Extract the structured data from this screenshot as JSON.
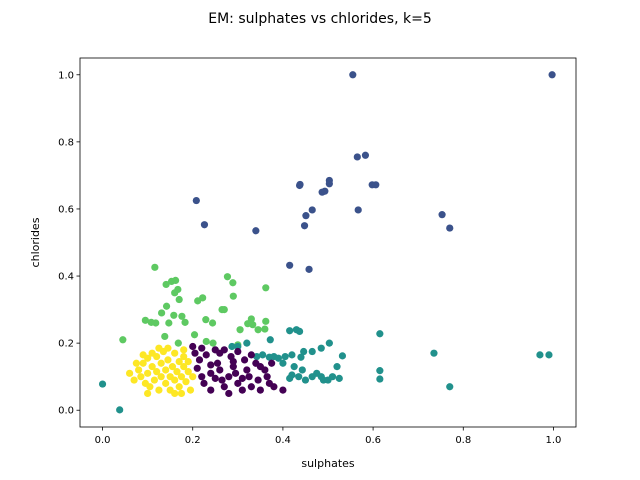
{
  "chart_data": {
    "type": "scatter",
    "title": "EM: sulphates vs chlorides, k=5",
    "xlabel": "sulphates",
    "ylabel": "chlorides",
    "xlim": [
      -0.05,
      1.05
    ],
    "ylim": [
      -0.05,
      1.05
    ],
    "xticks": [
      "0.0",
      "0.2",
      "0.4",
      "0.6",
      "0.8",
      "1.0"
    ],
    "yticks": [
      "0.0",
      "0.2",
      "0.4",
      "0.6",
      "0.8",
      "1.0"
    ],
    "grid": false,
    "legend": "none",
    "series": [
      {
        "color": "#3b528b",
        "points": [
          [
            0.555,
            1.0
          ],
          [
            0.997,
            1.0
          ],
          [
            0.565,
            0.755
          ],
          [
            0.583,
            0.76
          ],
          [
            0.208,
            0.625
          ],
          [
            0.226,
            0.553
          ],
          [
            0.34,
            0.535
          ],
          [
            0.437,
            0.67
          ],
          [
            0.438,
            0.673
          ],
          [
            0.487,
            0.65
          ],
          [
            0.493,
            0.653
          ],
          [
            0.503,
            0.685
          ],
          [
            0.503,
            0.675
          ],
          [
            0.598,
            0.672
          ],
          [
            0.606,
            0.672
          ],
          [
            0.465,
            0.597
          ],
          [
            0.451,
            0.58
          ],
          [
            0.448,
            0.55
          ],
          [
            0.567,
            0.597
          ],
          [
            0.753,
            0.583
          ],
          [
            0.77,
            0.543
          ],
          [
            0.415,
            0.432
          ],
          [
            0.458,
            0.42
          ]
        ]
      },
      {
        "color": "#5ec962",
        "points": [
          [
            0.116,
            0.426
          ],
          [
            0.162,
            0.387
          ],
          [
            0.153,
            0.384
          ],
          [
            0.141,
            0.375
          ],
          [
            0.167,
            0.36
          ],
          [
            0.16,
            0.35
          ],
          [
            0.17,
            0.33
          ],
          [
            0.211,
            0.326
          ],
          [
            0.222,
            0.335
          ],
          [
            0.277,
            0.398
          ],
          [
            0.289,
            0.38
          ],
          [
            0.29,
            0.34
          ],
          [
            0.362,
            0.365
          ],
          [
            0.142,
            0.31
          ],
          [
            0.131,
            0.29
          ],
          [
            0.158,
            0.283
          ],
          [
            0.176,
            0.28
          ],
          [
            0.095,
            0.268
          ],
          [
            0.108,
            0.262
          ],
          [
            0.118,
            0.26
          ],
          [
            0.147,
            0.26
          ],
          [
            0.183,
            0.262
          ],
          [
            0.229,
            0.27
          ],
          [
            0.244,
            0.26
          ],
          [
            0.265,
            0.3
          ],
          [
            0.27,
            0.3
          ],
          [
            0.33,
            0.272
          ],
          [
            0.322,
            0.258
          ],
          [
            0.333,
            0.255
          ],
          [
            0.362,
            0.265
          ],
          [
            0.305,
            0.24
          ],
          [
            0.345,
            0.24
          ],
          [
            0.36,
            0.242
          ],
          [
            0.204,
            0.225
          ],
          [
            0.23,
            0.205
          ],
          [
            0.045,
            0.21
          ],
          [
            0.138,
            0.22
          ],
          [
            0.168,
            0.2
          ],
          [
            0.245,
            0.2
          ],
          [
            0.3,
            0.195
          ]
        ]
      },
      {
        "color": "#21918c",
        "points": [
          [
            0.0,
            0.078
          ],
          [
            0.038,
            0.001
          ],
          [
            0.415,
            0.237
          ],
          [
            0.43,
            0.24
          ],
          [
            0.437,
            0.235
          ],
          [
            0.372,
            0.21
          ],
          [
            0.503,
            0.2
          ],
          [
            0.485,
            0.185
          ],
          [
            0.532,
            0.162
          ],
          [
            0.615,
            0.228
          ],
          [
            0.287,
            0.19
          ],
          [
            0.3,
            0.19
          ],
          [
            0.32,
            0.2
          ],
          [
            0.342,
            0.16
          ],
          [
            0.355,
            0.165
          ],
          [
            0.37,
            0.158
          ],
          [
            0.38,
            0.16
          ],
          [
            0.39,
            0.155
          ],
          [
            0.405,
            0.16
          ],
          [
            0.42,
            0.165
          ],
          [
            0.44,
            0.158
          ],
          [
            0.446,
            0.175
          ],
          [
            0.465,
            0.175
          ],
          [
            0.4,
            0.14
          ],
          [
            0.425,
            0.13
          ],
          [
            0.443,
            0.12
          ],
          [
            0.42,
            0.105
          ],
          [
            0.415,
            0.095
          ],
          [
            0.435,
            0.1
          ],
          [
            0.45,
            0.09
          ],
          [
            0.465,
            0.1
          ],
          [
            0.475,
            0.11
          ],
          [
            0.485,
            0.1
          ],
          [
            0.49,
            0.09
          ],
          [
            0.5,
            0.09
          ],
          [
            0.51,
            0.1
          ],
          [
            0.525,
            0.095
          ],
          [
            0.52,
            0.13
          ],
          [
            0.615,
            0.118
          ],
          [
            0.615,
            0.093
          ],
          [
            0.735,
            0.17
          ],
          [
            0.77,
            0.07
          ],
          [
            0.97,
            0.165
          ],
          [
            0.99,
            0.165
          ]
        ]
      },
      {
        "color": "#440154",
        "points": [
          [
            0.2,
            0.19
          ],
          [
            0.205,
            0.17
          ],
          [
            0.215,
            0.15
          ],
          [
            0.21,
            0.125
          ],
          [
            0.22,
            0.1
          ],
          [
            0.225,
            0.08
          ],
          [
            0.24,
            0.06
          ],
          [
            0.25,
            0.18
          ],
          [
            0.255,
            0.14
          ],
          [
            0.26,
            0.12
          ],
          [
            0.265,
            0.09
          ],
          [
            0.27,
            0.07
          ],
          [
            0.28,
            0.05
          ],
          [
            0.285,
            0.16
          ],
          [
            0.29,
            0.13
          ],
          [
            0.295,
            0.11
          ],
          [
            0.3,
            0.08
          ],
          [
            0.31,
            0.06
          ],
          [
            0.315,
            0.15
          ],
          [
            0.32,
            0.12
          ],
          [
            0.325,
            0.1
          ],
          [
            0.33,
            0.07
          ],
          [
            0.34,
            0.14
          ],
          [
            0.345,
            0.09
          ],
          [
            0.35,
            0.06
          ],
          [
            0.36,
            0.12
          ],
          [
            0.365,
            0.1
          ],
          [
            0.37,
            0.08
          ],
          [
            0.375,
            0.14
          ],
          [
            0.38,
            0.07
          ],
          [
            0.3,
            0.175
          ],
          [
            0.27,
            0.18
          ],
          [
            0.23,
            0.165
          ],
          [
            0.24,
            0.135
          ],
          [
            0.26,
            0.17
          ],
          [
            0.28,
            0.1
          ],
          [
            0.31,
            0.095
          ],
          [
            0.33,
            0.165
          ],
          [
            0.35,
            0.13
          ],
          [
            0.22,
            0.185
          ],
          [
            0.24,
            0.11
          ],
          [
            0.25,
            0.095
          ],
          [
            0.29,
            0.145
          ],
          [
            0.4,
            0.06
          ]
        ]
      },
      {
        "color": "#fde725",
        "points": [
          [
            0.07,
            0.09
          ],
          [
            0.08,
            0.12
          ],
          [
            0.085,
            0.1
          ],
          [
            0.09,
            0.14
          ],
          [
            0.095,
            0.08
          ],
          [
            0.1,
            0.11
          ],
          [
            0.1,
            0.155
          ],
          [
            0.105,
            0.07
          ],
          [
            0.11,
            0.13
          ],
          [
            0.115,
            0.09
          ],
          [
            0.12,
            0.16
          ],
          [
            0.12,
            0.115
          ],
          [
            0.125,
            0.06
          ],
          [
            0.13,
            0.1
          ],
          [
            0.13,
            0.14
          ],
          [
            0.135,
            0.175
          ],
          [
            0.14,
            0.08
          ],
          [
            0.14,
            0.12
          ],
          [
            0.145,
            0.15
          ],
          [
            0.15,
            0.1
          ],
          [
            0.15,
            0.06
          ],
          [
            0.155,
            0.13
          ],
          [
            0.16,
            0.17
          ],
          [
            0.16,
            0.09
          ],
          [
            0.165,
            0.115
          ],
          [
            0.17,
            0.145
          ],
          [
            0.17,
            0.07
          ],
          [
            0.175,
            0.1
          ],
          [
            0.18,
            0.13
          ],
          [
            0.18,
            0.16
          ],
          [
            0.185,
            0.085
          ],
          [
            0.19,
            0.115
          ],
          [
            0.19,
            0.145
          ],
          [
            0.195,
            0.06
          ],
          [
            0.11,
            0.17
          ],
          [
            0.125,
            0.185
          ],
          [
            0.145,
            0.185
          ],
          [
            0.16,
            0.05
          ],
          [
            0.175,
            0.05
          ],
          [
            0.06,
            0.11
          ],
          [
            0.075,
            0.14
          ],
          [
            0.09,
            0.165
          ],
          [
            0.1,
            0.05
          ],
          [
            0.18,
            0.18
          ],
          [
            0.2,
            0.1
          ]
        ]
      }
    ]
  }
}
